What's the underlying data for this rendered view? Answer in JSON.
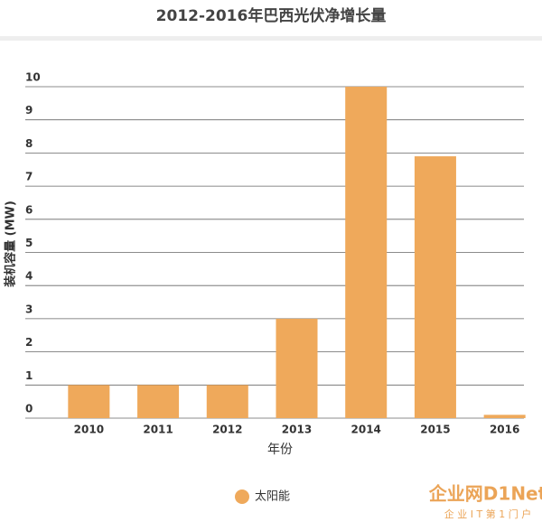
{
  "chart_data": {
    "type": "bar",
    "title": "2012-2016年巴西光伏净增长量",
    "categories": [
      "2010",
      "2011",
      "2012",
      "2013",
      "2014",
      "2015",
      "2016"
    ],
    "series": [
      {
        "name": "太阳能",
        "color": "#efa95b",
        "values": [
          1,
          1,
          1,
          3,
          10,
          7.9,
          0.1
        ]
      }
    ],
    "ylim": [
      0,
      10
    ],
    "yticks": [
      0,
      1,
      2,
      3,
      4,
      5,
      6,
      7,
      8,
      9,
      10
    ],
    "grid": true,
    "xlabel": "年份",
    "ylabel": "装机容量 (MW)",
    "legend": "bottom"
  },
  "watermark": {
    "brand": "企业网D1Net",
    "slogan": "企 业 I T 第 1 门 户"
  }
}
